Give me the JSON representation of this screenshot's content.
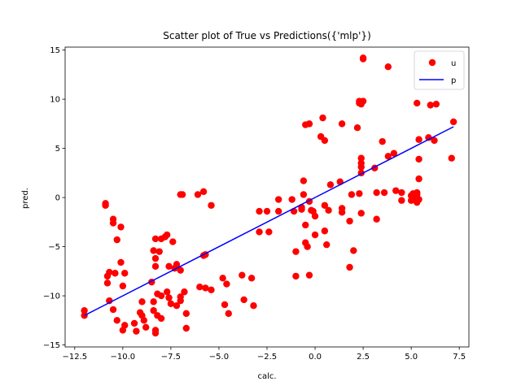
{
  "chart_data": {
    "type": "scatter",
    "title": "Scatter plot of True vs Predictions({'mlp'})",
    "xlabel": "calc.",
    "ylabel": "pred.",
    "xlim": [
      -13.0,
      8.0
    ],
    "ylim": [
      -15.2,
      15.3
    ],
    "xticks": [
      -12.5,
      -10.0,
      -7.5,
      -5.0,
      -2.5,
      0.0,
      2.5,
      5.0,
      7.5
    ],
    "xtick_labels": [
      "−12.5",
      "−10.0",
      "−7.5",
      "−5.0",
      "−2.5",
      "0.0",
      "2.5",
      "5.0",
      "7.5"
    ],
    "yticks": [
      -15,
      -10,
      -5,
      0,
      5,
      10,
      15
    ],
    "ytick_labels": [
      "−15",
      "−10",
      "−5",
      "0",
      "5",
      "10",
      "15"
    ],
    "grid": false,
    "legend": {
      "position": "upper right",
      "entries": [
        "u",
        "p"
      ]
    },
    "colors": {
      "scatter": "#ff0000",
      "line": "#0000ff"
    },
    "series": [
      {
        "name": "u",
        "kind": "scatter",
        "points": [
          [
            -12.0,
            -11.5
          ],
          [
            -12.0,
            -12.0
          ],
          [
            -10.9,
            -0.6
          ],
          [
            -10.9,
            -0.8
          ],
          [
            -10.8,
            -8.0
          ],
          [
            -10.8,
            -8.7
          ],
          [
            -10.7,
            -10.5
          ],
          [
            -10.7,
            -7.6
          ],
          [
            -10.5,
            -2.2
          ],
          [
            -10.5,
            -2.6
          ],
          [
            -10.5,
            -11.4
          ],
          [
            -10.4,
            -7.7
          ],
          [
            -10.3,
            -4.3
          ],
          [
            -10.3,
            -12.5
          ],
          [
            -10.1,
            -3.0
          ],
          [
            -10.1,
            -6.6
          ],
          [
            -10.0,
            -9.0
          ],
          [
            -9.9,
            -7.7
          ],
          [
            -9.9,
            -13.0
          ],
          [
            -10.0,
            -13.5
          ],
          [
            -9.4,
            -12.8
          ],
          [
            -9.3,
            -13.6
          ],
          [
            -9.1,
            -11.7
          ],
          [
            -9.0,
            -12.0
          ],
          [
            -9.0,
            -10.6
          ],
          [
            -8.9,
            -12.5
          ],
          [
            -8.8,
            -13.2
          ],
          [
            -8.5,
            -8.6
          ],
          [
            -8.4,
            -10.6
          ],
          [
            -8.4,
            -11.5
          ],
          [
            -8.3,
            -4.2
          ],
          [
            -8.4,
            -5.4
          ],
          [
            -8.3,
            -6.2
          ],
          [
            -8.3,
            -7.0
          ],
          [
            -8.2,
            -9.8
          ],
          [
            -8.0,
            -10.0
          ],
          [
            -8.0,
            -4.2
          ],
          [
            -8.1,
            -5.5
          ],
          [
            -8.3,
            -13.5
          ],
          [
            -8.3,
            -13.8
          ],
          [
            -8.2,
            -12.0
          ],
          [
            -8.0,
            -12.3
          ],
          [
            -7.8,
            -4.0
          ],
          [
            -7.7,
            -3.8
          ],
          [
            -7.7,
            -9.6
          ],
          [
            -7.6,
            -10.2
          ],
          [
            -7.5,
            -10.8
          ],
          [
            -7.6,
            -7.0
          ],
          [
            -7.4,
            -4.5
          ],
          [
            -7.3,
            -7.2
          ],
          [
            -7.2,
            -6.8
          ],
          [
            -7.2,
            -11.0
          ],
          [
            -7.0,
            -10.5
          ],
          [
            -7.0,
            -7.4
          ],
          [
            -6.8,
            -9.6
          ],
          [
            -7.0,
            -10.1
          ],
          [
            -6.9,
            0.3
          ],
          [
            -7.0,
            0.3
          ],
          [
            -6.7,
            -11.8
          ],
          [
            -6.7,
            -13.3
          ],
          [
            -6.1,
            0.3
          ],
          [
            -5.8,
            0.6
          ],
          [
            -5.8,
            -5.9
          ],
          [
            -5.7,
            -5.8
          ],
          [
            -5.7,
            -9.2
          ],
          [
            -5.4,
            -0.8
          ],
          [
            -5.4,
            -9.4
          ],
          [
            -6.0,
            -9.1
          ],
          [
            -4.8,
            -8.2
          ],
          [
            -4.6,
            -8.8
          ],
          [
            -4.7,
            -10.9
          ],
          [
            -4.5,
            -11.8
          ],
          [
            -3.8,
            -7.9
          ],
          [
            -3.7,
            -10.4
          ],
          [
            -3.3,
            -8.2
          ],
          [
            -3.2,
            -11.0
          ],
          [
            -2.9,
            -1.4
          ],
          [
            -2.9,
            -3.5
          ],
          [
            -2.5,
            -1.4
          ],
          [
            -2.4,
            -3.5
          ],
          [
            -1.9,
            -1.4
          ],
          [
            -1.9,
            -0.2
          ],
          [
            -1.2,
            -0.2
          ],
          [
            -1.1,
            -1.4
          ],
          [
            -1.0,
            -5.5
          ],
          [
            -1.0,
            -8.0
          ],
          [
            -0.7,
            -1.0
          ],
          [
            -0.7,
            -1.2
          ],
          [
            -0.6,
            0.3
          ],
          [
            -0.6,
            1.7
          ],
          [
            -0.5,
            7.4
          ],
          [
            -0.3,
            7.5
          ],
          [
            -0.5,
            -2.8
          ],
          [
            -0.5,
            -4.6
          ],
          [
            -0.4,
            -5.0
          ],
          [
            -0.3,
            -7.9
          ],
          [
            -0.2,
            -1.3
          ],
          [
            -0.3,
            -0.4
          ],
          [
            -0.1,
            -1.4
          ],
          [
            0.0,
            -1.9
          ],
          [
            0.0,
            -3.8
          ],
          [
            0.3,
            6.2
          ],
          [
            0.4,
            8.1
          ],
          [
            0.5,
            5.8
          ],
          [
            0.5,
            -0.8
          ],
          [
            0.5,
            -3.4
          ],
          [
            0.6,
            -4.8
          ],
          [
            0.7,
            -1.3
          ],
          [
            0.8,
            1.3
          ],
          [
            1.3,
            1.6
          ],
          [
            1.4,
            7.5
          ],
          [
            1.4,
            -1.5
          ],
          [
            1.4,
            -1.1
          ],
          [
            1.8,
            -2.4
          ],
          [
            1.8,
            -7.1
          ],
          [
            1.9,
            0.3
          ],
          [
            2.0,
            -5.4
          ],
          [
            2.2,
            7.1
          ],
          [
            2.3,
            9.8
          ],
          [
            2.3,
            9.6
          ],
          [
            2.4,
            9.5
          ],
          [
            2.5,
            9.8
          ],
          [
            2.4,
            4.0
          ],
          [
            2.4,
            3.5
          ],
          [
            2.4,
            3.1
          ],
          [
            2.4,
            2.5
          ],
          [
            2.3,
            0.4
          ],
          [
            2.4,
            -1.6
          ],
          [
            2.5,
            14.1
          ],
          [
            2.5,
            14.2
          ],
          [
            3.1,
            3.0
          ],
          [
            3.2,
            0.5
          ],
          [
            3.2,
            -2.2
          ],
          [
            3.5,
            5.7
          ],
          [
            3.6,
            0.5
          ],
          [
            3.8,
            4.2
          ],
          [
            3.8,
            13.3
          ],
          [
            4.1,
            4.5
          ],
          [
            4.2,
            0.7
          ],
          [
            4.5,
            0.5
          ],
          [
            4.5,
            -0.3
          ],
          [
            5.0,
            0.2
          ],
          [
            5.0,
            -0.3
          ],
          [
            5.1,
            0.4
          ],
          [
            5.2,
            -0.2
          ],
          [
            5.3,
            -0.5
          ],
          [
            5.3,
            0.3
          ],
          [
            5.3,
            0.5
          ],
          [
            5.4,
            -0.2
          ],
          [
            5.3,
            9.6
          ],
          [
            5.4,
            5.9
          ],
          [
            5.4,
            3.9
          ],
          [
            5.4,
            1.9
          ],
          [
            5.9,
            6.1
          ],
          [
            6.0,
            9.4
          ],
          [
            6.3,
            9.5
          ],
          [
            6.2,
            5.8
          ],
          [
            7.1,
            4.0
          ],
          [
            7.2,
            7.7
          ]
        ]
      },
      {
        "name": "p",
        "kind": "line",
        "x": [
          -12.0,
          7.2
        ],
        "y": [
          -12.0,
          7.2
        ]
      }
    ]
  }
}
